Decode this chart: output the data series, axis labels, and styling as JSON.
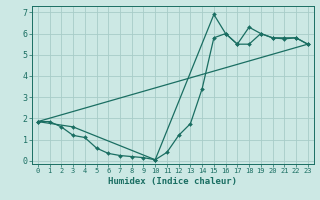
{
  "title": "",
  "xlabel": "Humidex (Indice chaleur)",
  "bg_color": "#cce8e4",
  "grid_color": "#a8ccc8",
  "line_color": "#1a6e62",
  "xlim": [
    -0.5,
    23.5
  ],
  "ylim": [
    -0.15,
    7.3
  ],
  "xticks": [
    0,
    1,
    2,
    3,
    4,
    5,
    6,
    7,
    8,
    9,
    10,
    11,
    12,
    13,
    14,
    15,
    16,
    17,
    18,
    19,
    20,
    21,
    22,
    23
  ],
  "yticks": [
    0,
    1,
    2,
    3,
    4,
    5,
    6,
    7
  ],
  "line1_x": [
    0,
    1,
    2,
    3,
    4,
    5,
    6,
    7,
    8,
    9,
    10,
    11,
    12,
    13,
    14,
    15,
    16,
    17,
    18,
    19,
    20,
    21,
    22,
    23
  ],
  "line1_y": [
    1.85,
    1.85,
    1.6,
    1.2,
    1.1,
    0.6,
    0.35,
    0.25,
    0.2,
    0.15,
    0.05,
    0.4,
    1.2,
    1.75,
    3.4,
    5.8,
    6.0,
    5.5,
    6.3,
    6.0,
    5.8,
    5.75,
    5.8,
    5.5
  ],
  "line2_x": [
    0,
    3,
    10,
    15,
    16,
    17,
    18,
    19,
    20,
    21,
    22,
    23
  ],
  "line2_y": [
    1.85,
    1.6,
    0.05,
    6.9,
    6.0,
    5.5,
    5.5,
    6.0,
    5.8,
    5.8,
    5.8,
    5.5
  ],
  "line3_x": [
    0,
    23
  ],
  "line3_y": [
    1.85,
    5.5
  ],
  "marker_size": 2.0,
  "linewidth": 0.9,
  "xlabel_fontsize": 6.5,
  "xtick_fontsize": 5.0,
  "ytick_fontsize": 6.0
}
